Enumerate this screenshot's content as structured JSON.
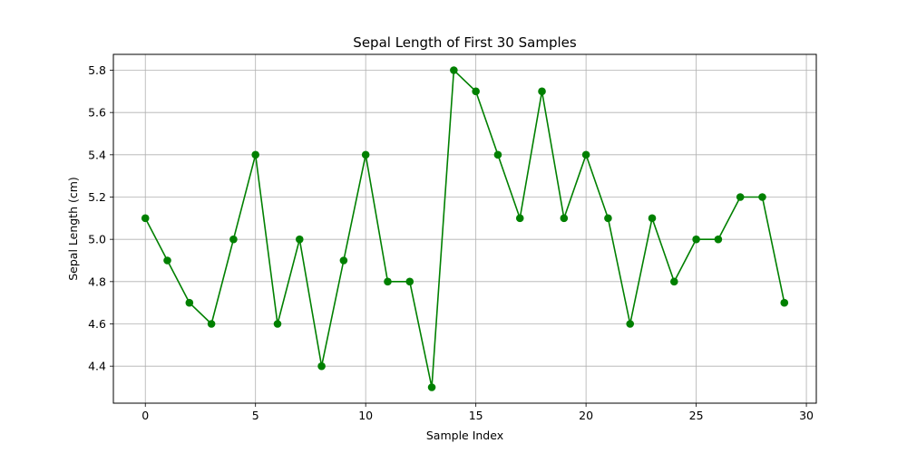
{
  "chart_data": {
    "type": "line",
    "title": "Sepal Length of First 30 Samples",
    "xlabel": "Sample Index",
    "ylabel": "Sepal Length (cm)",
    "xlim": [
      -1.45,
      30.45
    ],
    "ylim": [
      4.225,
      5.875
    ],
    "xticks": [
      0,
      5,
      10,
      15,
      20,
      25,
      30
    ],
    "xtick_labels": [
      "0",
      "5",
      "10",
      "15",
      "20",
      "25",
      "30"
    ],
    "yticks": [
      4.4,
      4.6,
      4.8,
      5.0,
      5.2,
      5.4,
      5.6,
      5.8
    ],
    "ytick_labels": [
      "4.4",
      "4.6",
      "4.8",
      "5.0",
      "5.2",
      "5.4",
      "5.6",
      "5.8"
    ],
    "grid": true,
    "marker": "circle",
    "color": "#008000",
    "series": [
      {
        "x": [
          0,
          1,
          2,
          3,
          4,
          5,
          6,
          7,
          8,
          9,
          10,
          11,
          12,
          13,
          14,
          15,
          16,
          17,
          18,
          19,
          20,
          21,
          22,
          23,
          24,
          25,
          26,
          27,
          28,
          29
        ],
        "values": [
          5.1,
          4.9,
          4.7,
          4.6,
          5.0,
          5.4,
          4.6,
          5.0,
          4.4,
          4.9,
          5.4,
          4.8,
          4.8,
          4.3,
          5.8,
          5.7,
          5.4,
          5.1,
          5.7,
          5.1,
          5.4,
          5.1,
          4.6,
          5.1,
          4.8,
          5.0,
          5.0,
          5.2,
          5.2,
          4.7
        ]
      }
    ]
  }
}
